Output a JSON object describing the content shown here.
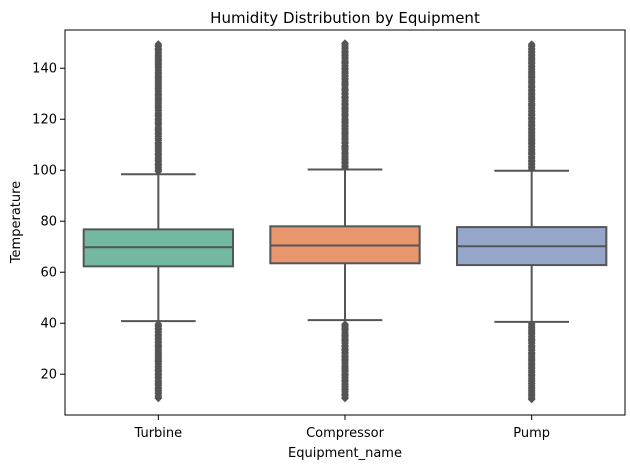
{
  "chart_data": {
    "type": "box",
    "title": "Humidity Distribution by Equipment",
    "xlabel": "Equipment_name",
    "ylabel": "Temperature",
    "ylim": [
      4,
      155
    ],
    "yticks": [
      20,
      40,
      60,
      80,
      100,
      120,
      140
    ],
    "grid": false,
    "legend": "none",
    "categories": [
      "Turbine",
      "Compressor",
      "Pump"
    ],
    "colors": [
      "#73b8a0",
      "#e8966e",
      "#95a6c8"
    ],
    "line_color": "#555555",
    "boxes": [
      {
        "category": "Turbine",
        "whisker_low": 40.8,
        "q1": 62.3,
        "median": 69.8,
        "q3": 76.8,
        "whisker_high": 98.4,
        "outliers_low_range": [
          10.5,
          40
        ],
        "outliers_high_range": [
          99.5,
          150
        ]
      },
      {
        "category": "Compressor",
        "whisker_low": 41.2,
        "q1": 63.5,
        "median": 70.5,
        "q3": 78.0,
        "whisker_high": 100.3,
        "outliers_low_range": [
          10.5,
          40
        ],
        "outliers_high_range": [
          101,
          150
        ]
      },
      {
        "category": "Pump",
        "whisker_low": 40.5,
        "q1": 62.8,
        "median": 70.2,
        "q3": 77.7,
        "whisker_high": 99.8,
        "outliers_low_range": [
          10,
          40
        ],
        "outliers_high_range": [
          100.5,
          150
        ]
      }
    ]
  }
}
